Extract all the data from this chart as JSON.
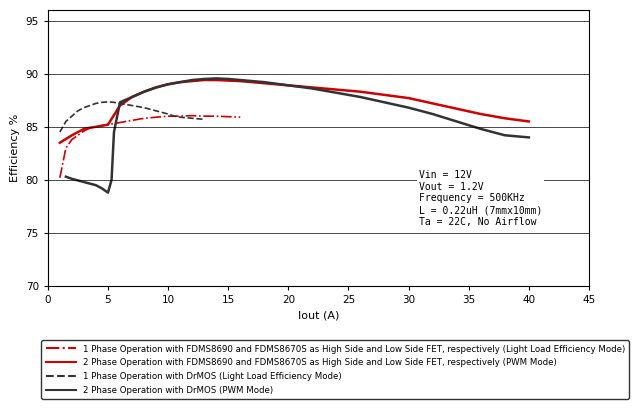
{
  "title": "",
  "xlabel": "Iout (A)",
  "ylabel": "Efficiency %",
  "xlim": [
    0,
    45
  ],
  "ylim": [
    70,
    96
  ],
  "yticks": [
    70,
    75,
    80,
    85,
    90,
    95
  ],
  "xticks": [
    0,
    5,
    10,
    15,
    20,
    25,
    30,
    35,
    40,
    45
  ],
  "annotation": "Vin = 12V\nVout = 1.2V\nFrequency = 500KHz\nL = 0.22uH (7mmx10mm)\nTa = 22C, No Airflow",
  "series": [
    {
      "label": "1 Phase Operation with FDMS8690 and FDMS8670S as High Side and Low Side FET, respectively (Light Load Efficiency Mode)",
      "color": "#cc0000",
      "linestyle": "dashdot",
      "linewidth": 1.2,
      "x": [
        1.0,
        1.5,
        2.0,
        2.5,
        3.0,
        3.5,
        4.0,
        4.5,
        5.0,
        5.5,
        6.0,
        7.0,
        8.0,
        9.0,
        10.0,
        11.0,
        12.0,
        13.0,
        14.0,
        15.0,
        16.0
      ],
      "y": [
        80.2,
        83.0,
        83.8,
        84.2,
        84.6,
        84.9,
        85.0,
        85.1,
        85.2,
        85.3,
        85.4,
        85.6,
        85.8,
        85.9,
        86.0,
        86.0,
        86.05,
        86.0,
        86.0,
        85.95,
        85.9
      ]
    },
    {
      "label": "2 Phase Operation with FDMS8690 and FDMS8670S as High Side and Low Side FET, respectively (PWM Mode)",
      "color": "#cc0000",
      "linestyle": "solid",
      "linewidth": 1.8,
      "x": [
        1.0,
        2.0,
        3.0,
        4.0,
        5.0,
        6.0,
        7.0,
        8.0,
        9.0,
        10.0,
        11.0,
        12.0,
        13.0,
        14.0,
        15.0,
        16.0,
        18.0,
        20.0,
        22.0,
        24.0,
        26.0,
        28.0,
        30.0,
        32.0,
        34.0,
        36.0,
        38.0,
        40.0
      ],
      "y": [
        83.5,
        84.2,
        84.8,
        85.0,
        85.2,
        87.0,
        87.8,
        88.3,
        88.7,
        89.0,
        89.2,
        89.3,
        89.4,
        89.4,
        89.35,
        89.3,
        89.1,
        88.9,
        88.7,
        88.5,
        88.3,
        88.0,
        87.7,
        87.2,
        86.7,
        86.2,
        85.8,
        85.5
      ]
    },
    {
      "label": "1 Phase Operation with DrMOS (Light Load Efficiency Mode)",
      "color": "#333333",
      "linestyle": "dashed",
      "linewidth": 1.2,
      "x": [
        1.0,
        1.5,
        2.0,
        2.5,
        3.0,
        3.5,
        4.0,
        4.5,
        5.0,
        5.5,
        6.0,
        7.0,
        8.0,
        9.0,
        10.0,
        10.5,
        11.0,
        11.5,
        12.0,
        12.5,
        13.0
      ],
      "y": [
        84.5,
        85.5,
        86.0,
        86.5,
        86.8,
        87.0,
        87.2,
        87.3,
        87.35,
        87.3,
        87.2,
        87.0,
        86.8,
        86.5,
        86.2,
        86.0,
        85.9,
        85.85,
        85.8,
        85.75,
        85.7
      ]
    },
    {
      "label": "2 Phase Operation with DrMOS (PWM Mode)",
      "color": "#333333",
      "linestyle": "solid",
      "linewidth": 1.8,
      "x": [
        1.5,
        2.0,
        3.0,
        4.0,
        4.5,
        5.0,
        5.3,
        5.5,
        6.0,
        7.0,
        8.0,
        9.0,
        10.0,
        11.0,
        12.0,
        13.0,
        14.0,
        15.0,
        16.0,
        18.0,
        20.0,
        22.0,
        24.0,
        26.0,
        28.0,
        30.0,
        32.0,
        34.0,
        36.0,
        38.0,
        40.0
      ],
      "y": [
        80.3,
        80.1,
        79.8,
        79.5,
        79.2,
        78.8,
        80.0,
        84.5,
        87.3,
        87.8,
        88.3,
        88.7,
        89.0,
        89.2,
        89.4,
        89.5,
        89.55,
        89.5,
        89.4,
        89.2,
        88.9,
        88.6,
        88.2,
        87.8,
        87.3,
        86.8,
        86.2,
        85.5,
        84.8,
        84.2,
        84.0
      ]
    }
  ],
  "legend_entries": [
    {
      "label": "1 Phase Operation with FDMS8690 and FDMS8670S as High Side and Low Side FET, respectively (Light Load Efficiency Mode)",
      "color": "#cc0000",
      "linestyle": "dashdot"
    },
    {
      "label": "2 Phase Operation with FDMS8690 and FDMS8670S as High Side and Low Side FET, respectively (PWM Mode)",
      "color": "#cc0000",
      "linestyle": "solid"
    },
    {
      "label": "1 Phase Operation with DrMOS (Light Load Efficiency Mode)",
      "color": "#333333",
      "linestyle": "dashed"
    },
    {
      "label": "2 Phase Operation with DrMOS (PWM Mode)",
      "color": "#333333",
      "linestyle": "solid"
    }
  ],
  "background_color": "#ffffff",
  "grid_color": "#000000"
}
